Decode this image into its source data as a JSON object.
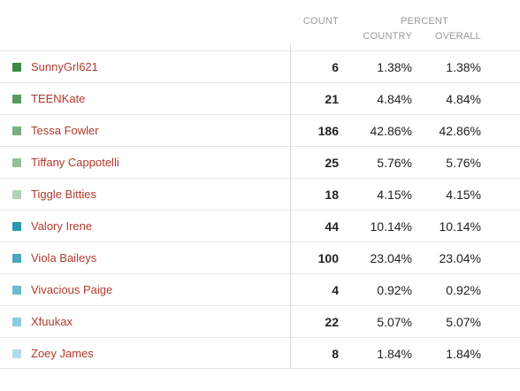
{
  "header": {
    "count_label": "COUNT",
    "percent_label": "PERCENT",
    "country_label": "COUNTRY",
    "overall_label": "OVERALL"
  },
  "rows": [
    {
      "name": "SunnyGrl621",
      "count": "6",
      "country": "1.38%",
      "overall": "1.38%",
      "color": "#3c8a46"
    },
    {
      "name": "TEENKate",
      "count": "21",
      "country": "4.84%",
      "overall": "4.84%",
      "color": "#5a9a62"
    },
    {
      "name": "Tessa Fowler",
      "count": "186",
      "country": "42.86%",
      "overall": "42.86%",
      "color": "#7aae80"
    },
    {
      "name": "Tiffany Cappotelli",
      "count": "25",
      "country": "5.76%",
      "overall": "5.76%",
      "color": "#98c09d"
    },
    {
      "name": "Tiggle Bitties",
      "count": "18",
      "country": "4.15%",
      "overall": "4.15%",
      "color": "#b3d3b6"
    },
    {
      "name": "Valory Irene",
      "count": "44",
      "country": "10.14%",
      "overall": "10.14%",
      "color": "#2a96b3"
    },
    {
      "name": "Viola Baileys",
      "count": "100",
      "country": "23.04%",
      "overall": "23.04%",
      "color": "#49a7c2"
    },
    {
      "name": "Vivacious Paige",
      "count": "4",
      "country": "0.92%",
      "overall": "0.92%",
      "color": "#6cbad0"
    },
    {
      "name": "Xfuukax",
      "count": "22",
      "country": "5.07%",
      "overall": "5.07%",
      "color": "#8ecbdc"
    },
    {
      "name": "Zoey James",
      "count": "8",
      "country": "1.84%",
      "overall": "1.84%",
      "color": "#b0dbe7"
    }
  ]
}
